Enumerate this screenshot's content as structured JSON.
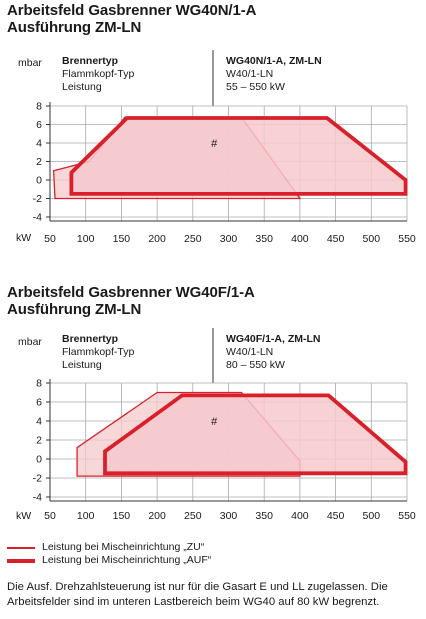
{
  "charts": [
    {
      "title_line1": "Arbeitsfeld Gasbrenner WG40N/1-A",
      "title_line2": "Ausführung ZM-LN",
      "y_unit": "mbar",
      "x_unit": "kW",
      "info_left": [
        "Brennertyp",
        "Flammkopf-Typ",
        "Leistung"
      ],
      "info_right": [
        "WG40N/1-A, ZM-LN",
        "W40/1-LN",
        "55 – 550 kW"
      ]
    },
    {
      "title_line1": "Arbeitsfeld Gasbrenner WG40F/1-A",
      "title_line2": "Ausführung ZM-LN",
      "y_unit": "mbar",
      "x_unit": "kW",
      "info_left": [
        "Brennertyp",
        "Flammkopf-Typ",
        "Leistung"
      ],
      "info_right": [
        "WG40F/1-A, ZM-LN",
        "W40/1-LN",
        "80 – 550 kW"
      ]
    }
  ],
  "legend": {
    "zu": "Leistung bei Mischeinrichtung „ZU“",
    "auf": "Leistung bei Mischeinrichtung „AUF“"
  },
  "footnote": "Die Ausf. Drehzahlsteuerung ist nur für die Gasart E und LL zugelassen. Die Arbeitsfelder sind im unteren Lastbereich beim WG40 auf 80 kW begrenzt.",
  "colors": {
    "line": "#d9202a",
    "fill": "#f6c9cc",
    "grid": "#aaaaaa"
  },
  "chart_data": [
    {
      "type": "area",
      "title": "Arbeitsfeld Gasbrenner WG40N/1-A Ausführung ZM-LN",
      "xlabel": "kW",
      "ylabel": "mbar",
      "xlim": [
        50,
        550
      ],
      "ylim": [
        -4,
        8
      ],
      "x_ticks": [
        50,
        100,
        150,
        200,
        250,
        300,
        350,
        400,
        450,
        500,
        550
      ],
      "y_ticks": [
        -4,
        -2,
        0,
        2,
        4,
        6,
        8
      ],
      "grid": true,
      "series": [
        {
          "name": "Leistung bei Mischeinrichtung „ZU“",
          "points": [
            [
              57,
              -2
            ],
            [
              55,
              1
            ],
            [
              105,
              2
            ],
            [
              155,
              6.8
            ],
            [
              318,
              6.8
            ],
            [
              400,
              -2
            ]
          ]
        },
        {
          "name": "Leistung bei Mischeinrichtung „AUF“",
          "points": [
            [
              80,
              -1.5
            ],
            [
              80,
              0.8
            ],
            [
              158,
              6.7
            ],
            [
              438,
              6.7
            ],
            [
              548,
              0
            ],
            [
              548,
              -1.5
            ]
          ]
        }
      ],
      "marker": {
        "label": "#",
        "x": 280,
        "y": 4
      }
    },
    {
      "type": "area",
      "title": "Arbeitsfeld Gasbrenner WG40F/1-A Ausführung ZM-LN",
      "xlabel": "kW",
      "ylabel": "mbar",
      "xlim": [
        50,
        550
      ],
      "ylim": [
        -4,
        8
      ],
      "x_ticks": [
        50,
        100,
        150,
        200,
        250,
        300,
        350,
        400,
        450,
        500,
        550
      ],
      "y_ticks": [
        -4,
        -2,
        0,
        2,
        4,
        6,
        8
      ],
      "grid": true,
      "series": [
        {
          "name": "Leistung bei Mischeinrichtung „ZU“",
          "points": [
            [
              88,
              -1.8
            ],
            [
              88,
              1.2
            ],
            [
              200,
              7
            ],
            [
              318,
              7
            ],
            [
              400,
              -0.2
            ],
            [
              400,
              -1.8
            ]
          ]
        },
        {
          "name": "Leistung bei Mischeinrichtung „AUF“",
          "points": [
            [
              127,
              -1.5
            ],
            [
              127,
              0.8
            ],
            [
              235,
              6.7
            ],
            [
              440,
              6.7
            ],
            [
              548,
              -0.3
            ],
            [
              548,
              -1.5
            ]
          ]
        }
      ],
      "marker": {
        "label": "#",
        "x": 280,
        "y": 4
      }
    }
  ]
}
